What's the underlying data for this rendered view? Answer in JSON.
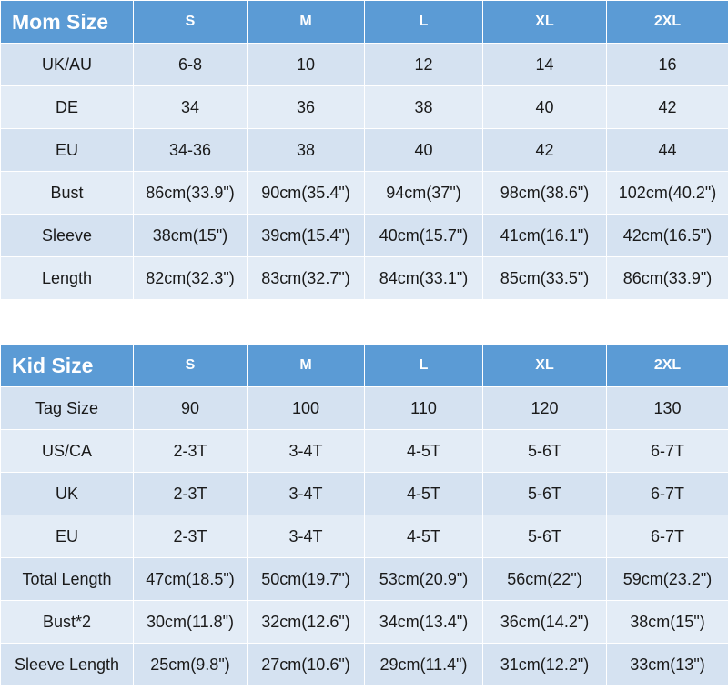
{
  "tables": [
    {
      "header": [
        "Mom Size",
        "S",
        "M",
        "L",
        "XL",
        "2XL"
      ],
      "rows": [
        [
          "UK/AU",
          "6-8",
          "10",
          "12",
          "14",
          "16"
        ],
        [
          "DE",
          "34",
          "36",
          "38",
          "40",
          "42"
        ],
        [
          "EU",
          "34-36",
          "38",
          "40",
          "42",
          "44"
        ],
        [
          "Bust",
          "86cm(33.9\")",
          "90cm(35.4\")",
          "94cm(37\")",
          "98cm(38.6\")",
          "102cm(40.2\")"
        ],
        [
          "Sleeve",
          "38cm(15\")",
          "39cm(15.4\")",
          "40cm(15.7\")",
          "41cm(16.1\")",
          "42cm(16.5\")"
        ],
        [
          "Length",
          "82cm(32.3\")",
          "83cm(32.7\")",
          "84cm(33.1\")",
          "85cm(33.5\")",
          "86cm(33.9\")"
        ]
      ]
    },
    {
      "header": [
        "Kid Size",
        "S",
        "M",
        "L",
        "XL",
        "2XL"
      ],
      "rows": [
        [
          "Tag Size",
          "90",
          "100",
          "110",
          "120",
          "130"
        ],
        [
          "US/CA",
          "2-3T",
          "3-4T",
          "4-5T",
          "5-6T",
          "6-7T"
        ],
        [
          "UK",
          "2-3T",
          "3-4T",
          "4-5T",
          "5-6T",
          "6-7T"
        ],
        [
          "EU",
          "2-3T",
          "3-4T",
          "4-5T",
          "5-6T",
          "6-7T"
        ],
        [
          "Total Length",
          "47cm(18.5\")",
          "50cm(19.7\")",
          "53cm(20.9\")",
          "56cm(22\")",
          "59cm(23.2\")"
        ],
        [
          "Bust*2",
          "30cm(11.8\")",
          "32cm(12.6\")",
          "34cm(13.4\")",
          "36cm(14.2\")",
          "38cm(15\")"
        ],
        [
          "Sleeve Length",
          "25cm(9.8\")",
          "27cm(10.6\")",
          "29cm(11.4\")",
          "31cm(12.2\")",
          "33cm(13\")"
        ]
      ]
    }
  ]
}
